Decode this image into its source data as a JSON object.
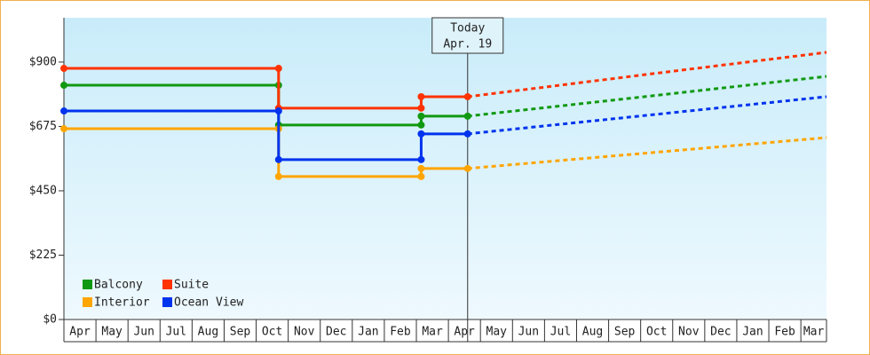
{
  "chart_data": {
    "type": "step-line",
    "annotation": {
      "title": "Today",
      "date": "Apr. 19",
      "x": 12.6
    },
    "x": [
      0,
      6.7,
      6.7,
      11.15,
      11.15,
      12.6
    ],
    "forecast_x": [
      12.6,
      18.2,
      23.8
    ],
    "series": [
      {
        "name": "Balcony",
        "color": "#119911",
        "values": [
          819,
          819,
          680,
          680,
          711,
          711
        ],
        "forecast_values": [
          711,
          780,
          850
        ]
      },
      {
        "name": "Suite",
        "color": "#ff3300",
        "values": [
          878,
          878,
          739,
          739,
          779,
          779
        ],
        "forecast_values": [
          779,
          857,
          934
        ]
      },
      {
        "name": "Interior",
        "color": "#ffa500",
        "values": [
          667,
          667,
          500,
          500,
          528,
          528
        ],
        "forecast_values": [
          528,
          582,
          636
        ]
      },
      {
        "name": "Ocean View",
        "color": "#0033ee",
        "values": [
          729,
          729,
          559,
          559,
          649,
          649
        ],
        "forecast_values": [
          649,
          714,
          779
        ]
      }
    ],
    "xlim": [
      0,
      23.8
    ],
    "xticks": [
      {
        "value": 0,
        "label": "Apr"
      },
      {
        "value": 1,
        "label": "May"
      },
      {
        "value": 2,
        "label": "Jun"
      },
      {
        "value": 3,
        "label": "Jul"
      },
      {
        "value": 4,
        "label": "Aug"
      },
      {
        "value": 5,
        "label": "Sep"
      },
      {
        "value": 6,
        "label": "Oct"
      },
      {
        "value": 7,
        "label": "Nov"
      },
      {
        "value": 8,
        "label": "Dec"
      },
      {
        "value": 9,
        "label": "Jan"
      },
      {
        "value": 10,
        "label": "Feb"
      },
      {
        "value": 11,
        "label": "Mar"
      },
      {
        "value": 12,
        "label": "Apr"
      },
      {
        "value": 13,
        "label": "May"
      },
      {
        "value": 14,
        "label": "Jun"
      },
      {
        "value": 15,
        "label": "Jul"
      },
      {
        "value": 16,
        "label": "Aug"
      },
      {
        "value": 17,
        "label": "Sep"
      },
      {
        "value": 18,
        "label": "Oct"
      },
      {
        "value": 19,
        "label": "Nov"
      },
      {
        "value": 20,
        "label": "Dec"
      },
      {
        "value": 21,
        "label": "Jan"
      },
      {
        "value": 22,
        "label": "Feb"
      },
      {
        "value": 23,
        "label": "Mar"
      }
    ],
    "ylim": [
      0,
      1055
    ],
    "yticks": [
      {
        "value": 0,
        "label": "$0"
      },
      {
        "value": 225,
        "label": "$225"
      },
      {
        "value": 450,
        "label": "$450"
      },
      {
        "value": 675,
        "label": "$675"
      },
      {
        "value": 900,
        "label": "$900"
      }
    ],
    "legend": "lower left"
  }
}
